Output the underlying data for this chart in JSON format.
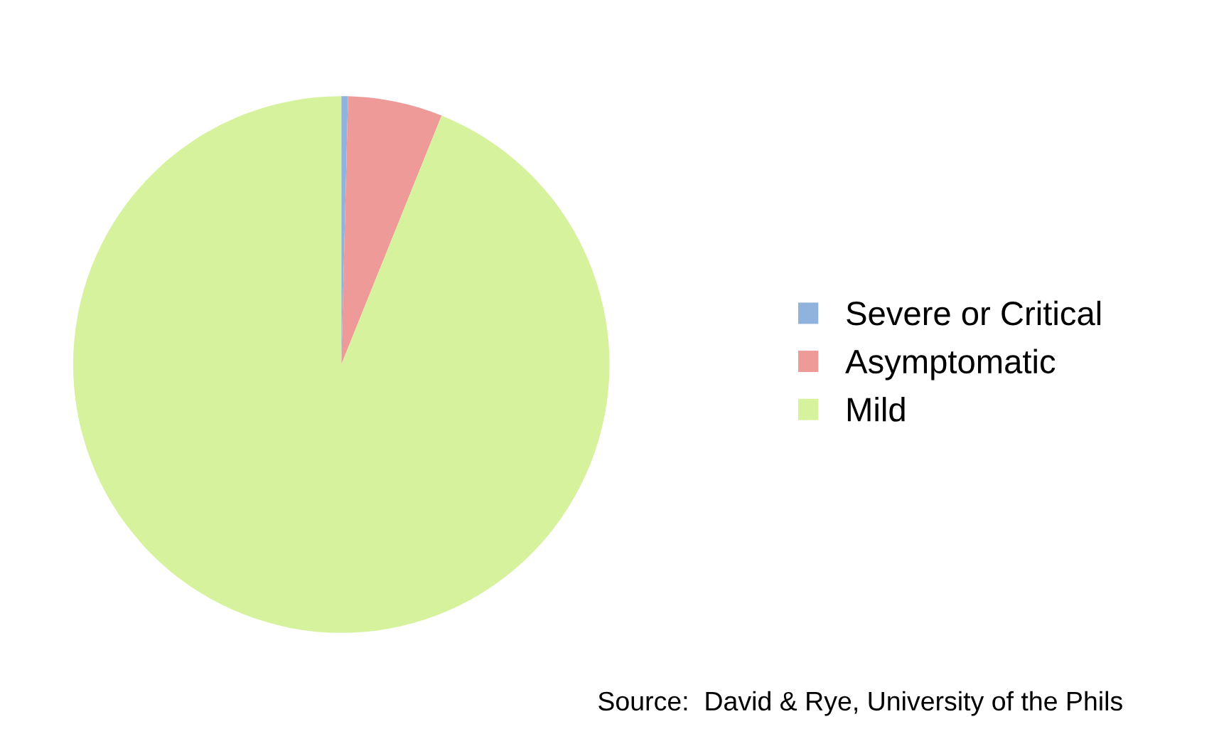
{
  "chart_data": {
    "type": "pie",
    "categories": [
      "Severe or Critical",
      "Asymptomatic",
      "Mild"
    ],
    "values": [
      0.4,
      5.7,
      93.9
    ],
    "colors": [
      "#8fb3dc",
      "#ee9a98",
      "#d6f29c"
    ],
    "legend": "right",
    "annotations": [
      "Source:  David & Rye, University of the Phils"
    ]
  }
}
